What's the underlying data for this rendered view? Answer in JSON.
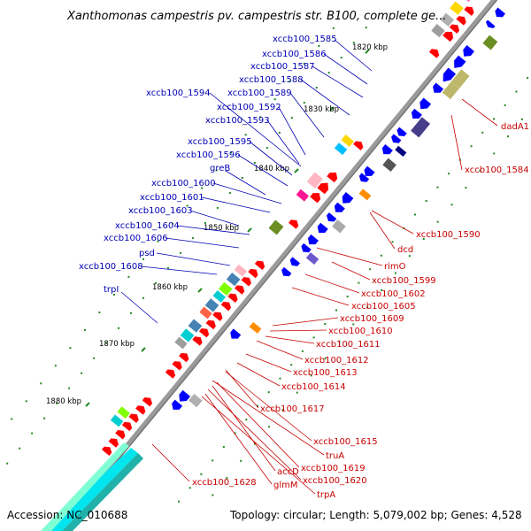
{
  "title": "Xanthomonas campestris pv. campestris str. B100, complete ge...",
  "footer": {
    "accession": "Accession: NC_010688",
    "summary": "Topology: circular; Length: 5,079,002 bp; Genes: 4,528"
  },
  "colors": {
    "backbone": "#8c8c8c",
    "forward": "#0000ff",
    "reverse": "#ff0000",
    "tick": "#228b22",
    "forward_label": "#0000b4",
    "reverse_label": "#c80000"
  },
  "kbp_ticks": [
    "1820 kbp",
    "1830 kbp",
    "1840 kbp",
    "1850 kbp",
    "1860 kbp",
    "1870 kbp",
    "1880 kbp"
  ],
  "forward_labels": [
    "xccb100_1585",
    "xccb100_1586",
    "xccb100_1587",
    "xccb100_1588",
    "xccb100_1594",
    "xccb100_1589",
    "xccb100_1592",
    "xccb100_1593",
    "xccb100_1595",
    "xccb100_1596",
    "greB",
    "xccb100_1600",
    "xccb100_1601",
    "xccb100_1603",
    "xccb100_1604",
    "xccb100_1606",
    "psd",
    "xccb100_1608",
    "trpI"
  ],
  "reverse_labels": [
    "dadA1",
    "xccb100_1584",
    "xccb100_1590",
    "dcd",
    "rimO",
    "xccb100_1599",
    "xccb100_1602",
    "xccb100_1605",
    "xccb100_1609",
    "xccb100_1610",
    "xccb100_1611",
    "xccb100_1612",
    "xccb100_1613",
    "xccb100_1614",
    "xccb100_1617",
    "xccb100_1615",
    "truA",
    "xccb100_1619",
    "accD",
    "xccb100_1620",
    "glmM",
    "trpA",
    "xccb100_1628"
  ]
}
